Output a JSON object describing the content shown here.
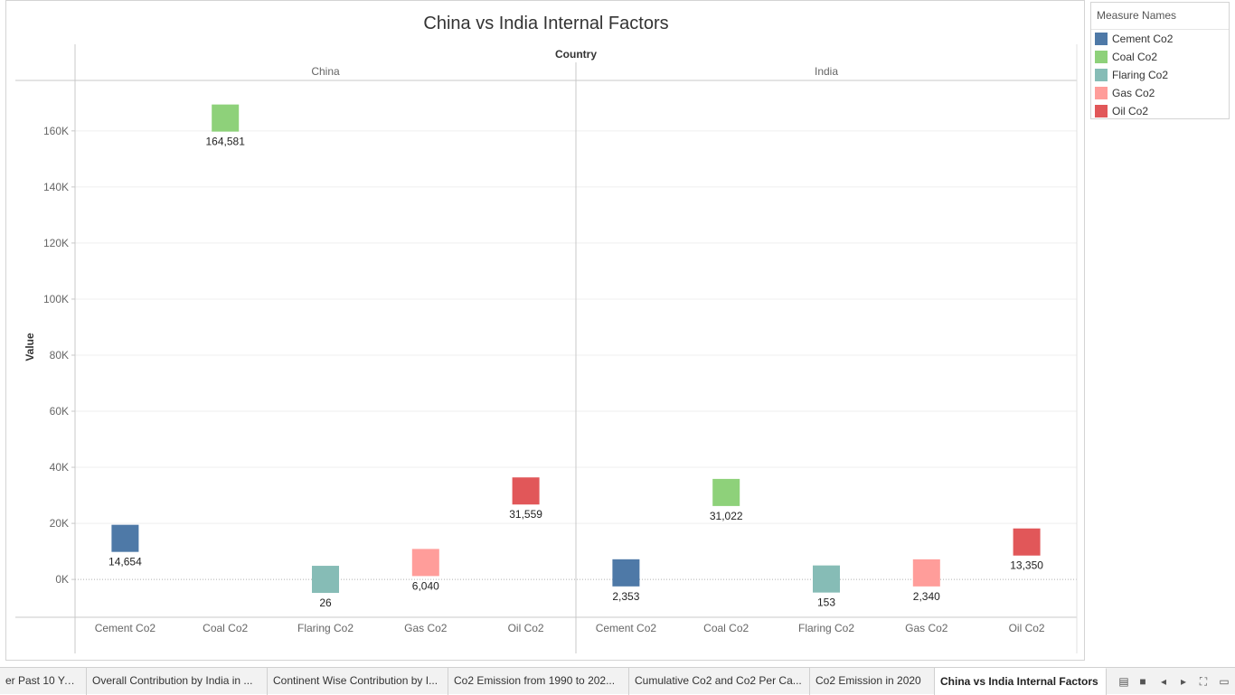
{
  "title": "China vs India Internal Factors",
  "legend": {
    "title": "Measure Names",
    "items": [
      {
        "label": "Cement Co2",
        "color": "#4e79a7"
      },
      {
        "label": "Coal Co2",
        "color": "#8ed17a"
      },
      {
        "label": "Flaring Co2",
        "color": "#86bcb6"
      },
      {
        "label": "Gas Co2",
        "color": "#ff9d9a"
      },
      {
        "label": "Oil Co2",
        "color": "#e15759"
      }
    ]
  },
  "tabs": [
    {
      "label": "er Past 10 Years"
    },
    {
      "label": "Overall Contribution by India in ..."
    },
    {
      "label": "Continent Wise Contribution by I..."
    },
    {
      "label": "Co2 Emission from 1990 to 202..."
    },
    {
      "label": "Cumulative Co2 and Co2 Per Ca..."
    },
    {
      "label": "Co2 Emission in 2020"
    },
    {
      "label": "China vs India Internal Factors",
      "active": true
    }
  ],
  "chart_data": {
    "type": "scatter",
    "header": "Country",
    "ylabel": "Value",
    "ylim": [
      -13500,
      178000
    ],
    "yticks": [
      0,
      20000,
      40000,
      60000,
      80000,
      100000,
      120000,
      140000,
      160000
    ],
    "ytick_labels": [
      "0K",
      "20K",
      "40K",
      "60K",
      "80K",
      "100K",
      "120K",
      "140K",
      "160K"
    ],
    "categories": [
      "Cement Co2",
      "Coal Co2",
      "Flaring Co2",
      "Gas Co2",
      "Oil Co2"
    ],
    "panels": [
      {
        "name": "China",
        "values": [
          14654,
          164581,
          26,
          6040,
          31559
        ],
        "labels": [
          "14,654",
          "164,581",
          "26",
          "6,040",
          "31,559"
        ]
      },
      {
        "name": "India",
        "values": [
          2353,
          31022,
          153,
          2340,
          13350
        ],
        "labels": [
          "2,353",
          "31,022",
          "153",
          "2,340",
          "13,350"
        ]
      }
    ],
    "colors": [
      "#4e79a7",
      "#8ed17a",
      "#86bcb6",
      "#ff9d9a",
      "#e15759"
    ],
    "grid": true
  }
}
